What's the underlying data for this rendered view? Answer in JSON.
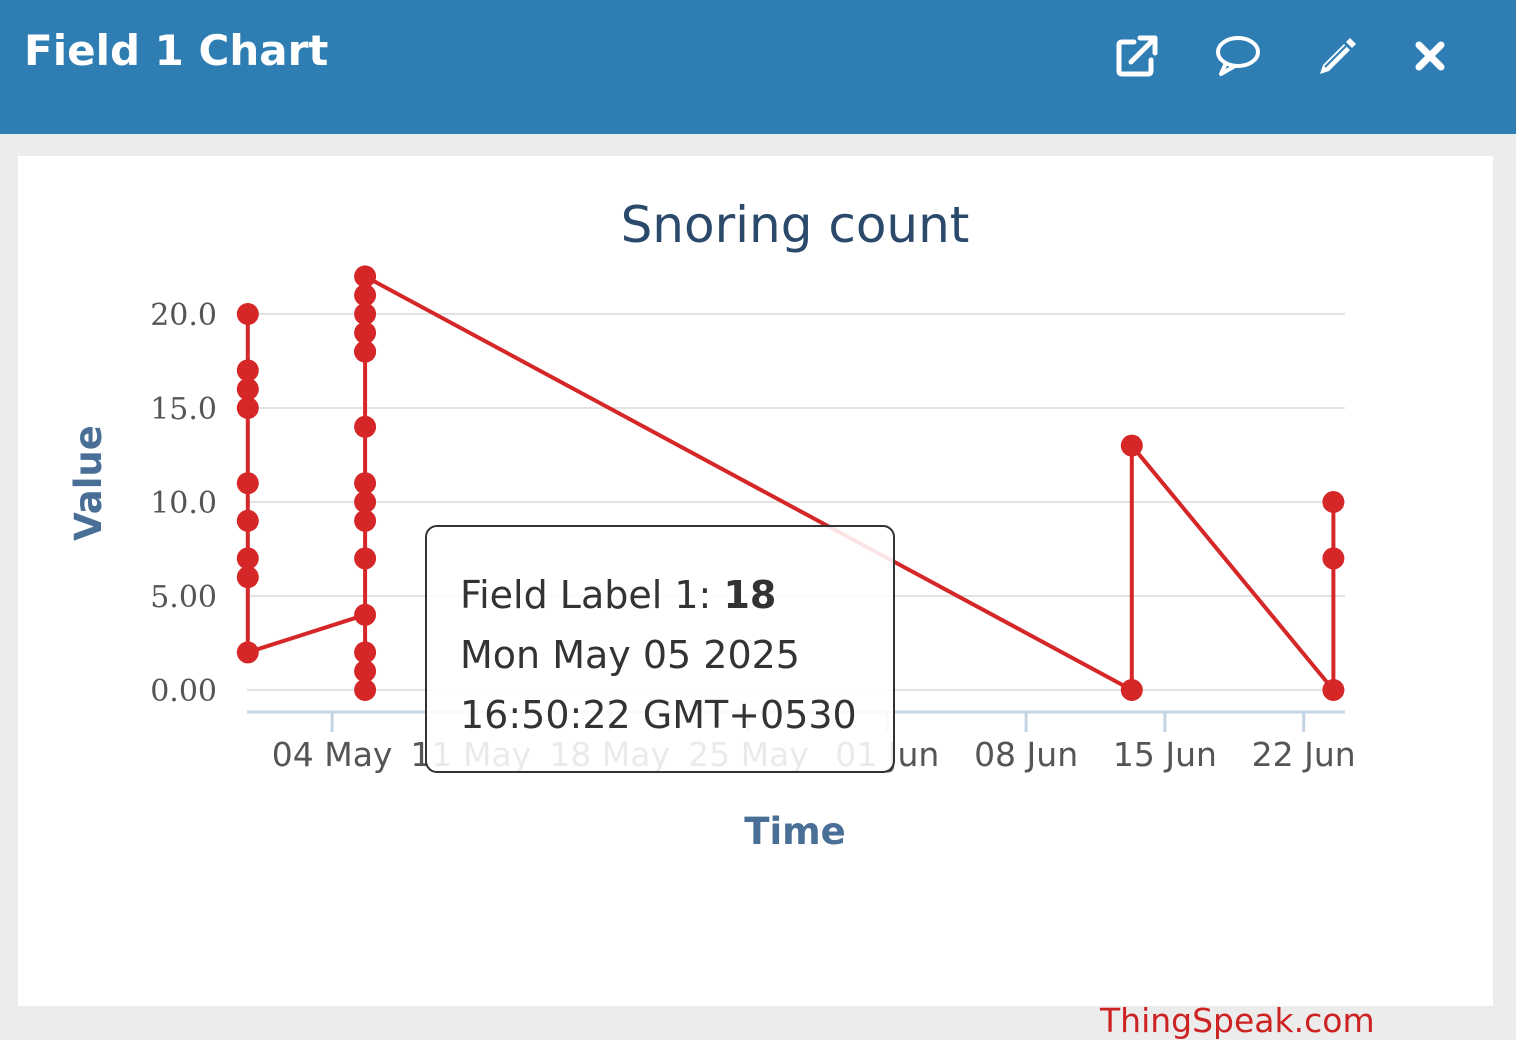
{
  "header": {
    "title": "Field 1 Chart",
    "icons": [
      "external-link-icon",
      "comment-icon",
      "pencil-icon",
      "close-icon"
    ]
  },
  "chart_data": {
    "type": "line",
    "title": "Snoring count",
    "xlabel": "Time",
    "ylabel": "Value",
    "ylim": [
      0,
      20
    ],
    "yticks": [
      0,
      5,
      10,
      15,
      20
    ],
    "ytick_labels": [
      "0.00",
      "5.00",
      "10.0",
      "15.0",
      "20.0"
    ],
    "xlim": [
      "2025-04-29T17:00",
      "2025-06-24T02:00"
    ],
    "xtick_labels": [
      "04 May",
      "11 May",
      "18 May",
      "25 May",
      "01 Jun",
      "08 Jun",
      "15 Jun",
      "22 Jun"
    ],
    "xtick_dates": [
      "2025-05-04",
      "2025-05-11",
      "2025-05-18",
      "2025-05-25",
      "2025-06-01",
      "2025-06-08",
      "2025-06-15",
      "2025-06-22"
    ],
    "grid": true,
    "color": "#d62728",
    "series": [
      {
        "points": [
          {
            "x": "2025-04-29T18:00",
            "y": 20
          },
          {
            "x": "2025-04-29T18:00",
            "y": 17
          },
          {
            "x": "2025-04-29T18:00",
            "y": 16
          },
          {
            "x": "2025-04-29T18:00",
            "y": 15
          },
          {
            "x": "2025-04-29T18:00",
            "y": 11
          },
          {
            "x": "2025-04-29T18:00",
            "y": 9
          },
          {
            "x": "2025-04-29T18:00",
            "y": 7
          },
          {
            "x": "2025-04-29T18:00",
            "y": 6
          },
          {
            "x": "2025-04-29T18:00",
            "y": 2
          },
          {
            "x": "2025-05-05T16:00",
            "y": 4
          },
          {
            "x": "2025-05-05T16:00",
            "y": 0
          },
          {
            "x": "2025-05-05T16:00",
            "y": 1
          },
          {
            "x": "2025-05-05T16:00",
            "y": 2
          },
          {
            "x": "2025-05-05T16:00",
            "y": 7
          },
          {
            "x": "2025-05-05T16:00",
            "y": 9
          },
          {
            "x": "2025-05-05T16:00",
            "y": 10
          },
          {
            "x": "2025-05-05T16:00",
            "y": 11
          },
          {
            "x": "2025-05-05T16:00",
            "y": 14
          },
          {
            "x": "2025-05-05T16:00",
            "y": 18
          },
          {
            "x": "2025-05-05T16:00",
            "y": 18
          },
          {
            "x": "2025-05-05T16:00",
            "y": 19
          },
          {
            "x": "2025-05-05T16:00",
            "y": 20
          },
          {
            "x": "2025-05-05T16:00",
            "y": 21
          },
          {
            "x": "2025-05-05T16:00",
            "y": 22
          },
          {
            "x": "2025-06-13T08:00",
            "y": 0
          },
          {
            "x": "2025-06-13T08:00",
            "y": 13
          },
          {
            "x": "2025-06-23T12:00",
            "y": 0
          },
          {
            "x": "2025-06-23T12:00",
            "y": 7
          },
          {
            "x": "2025-06-23T12:00",
            "y": 10
          }
        ]
      }
    ],
    "tooltip": {
      "label": "Field Label 1:",
      "value": "18",
      "date": "Mon May 05 2025",
      "time": "16:50:22 GMT+0530"
    }
  },
  "credit": "ThingSpeak.com"
}
